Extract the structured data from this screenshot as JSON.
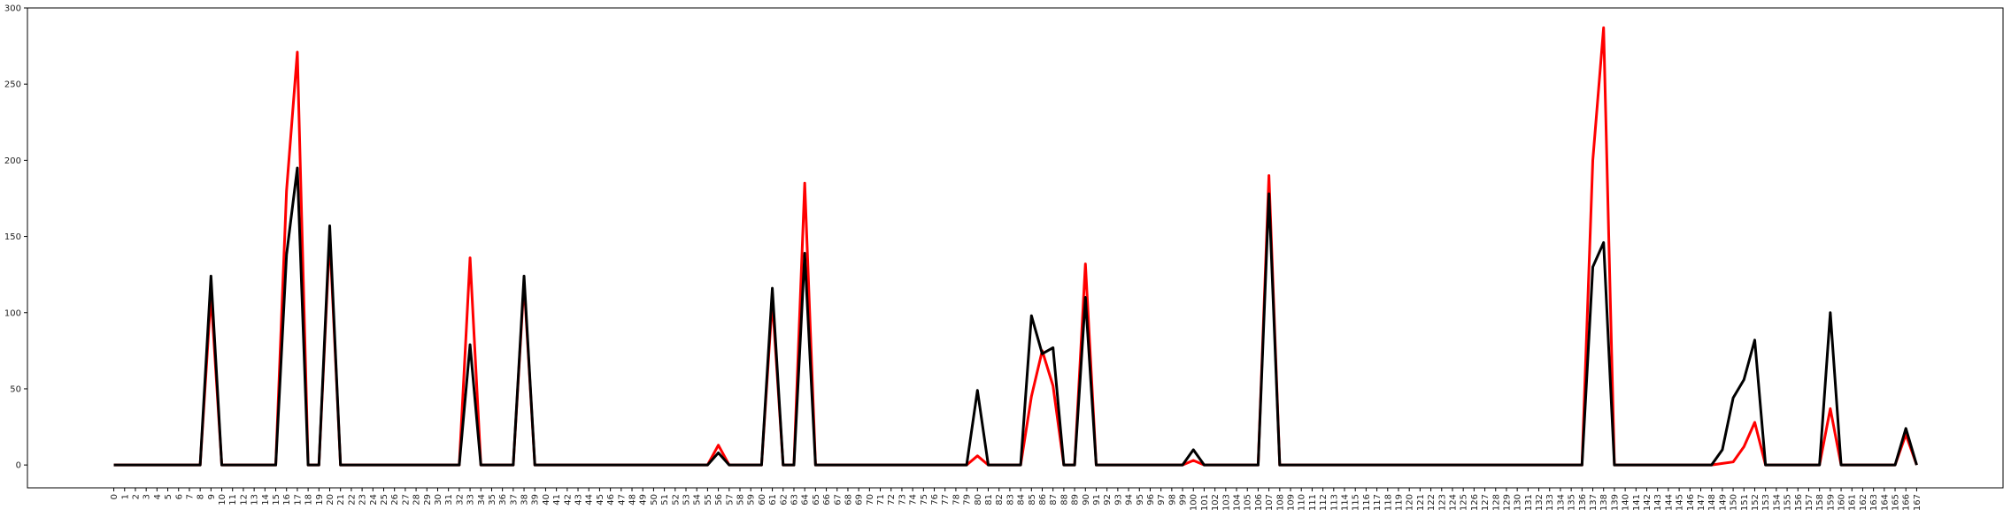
{
  "chart_data": {
    "type": "line",
    "title": "",
    "xlabel": "",
    "ylabel": "",
    "x": [
      0,
      1,
      2,
      3,
      4,
      5,
      6,
      7,
      8,
      9,
      10,
      11,
      12,
      13,
      14,
      15,
      16,
      17,
      18,
      19,
      20,
      21,
      22,
      23,
      24,
      25,
      26,
      27,
      28,
      29,
      30,
      31,
      32,
      33,
      34,
      35,
      36,
      37,
      38,
      39,
      40,
      41,
      42,
      43,
      44,
      45,
      46,
      47,
      48,
      49,
      50,
      51,
      52,
      53,
      54,
      55,
      56,
      57,
      58,
      59,
      60,
      61,
      62,
      63,
      64,
      65,
      66,
      67,
      68,
      69,
      70,
      71,
      72,
      73,
      74,
      75,
      76,
      77,
      78,
      79,
      80,
      81,
      82,
      83,
      84,
      85,
      86,
      87,
      88,
      89,
      90,
      91,
      92,
      93,
      94,
      95,
      96,
      97,
      98,
      99,
      100,
      101,
      102,
      103,
      104,
      105,
      106,
      107,
      108,
      109,
      110,
      111,
      112,
      113,
      114,
      115,
      116,
      117,
      118,
      119,
      120,
      121,
      122,
      123,
      124,
      125,
      126,
      127,
      128,
      129,
      130,
      131,
      132,
      133,
      134,
      135,
      136,
      137,
      138,
      139,
      140,
      141,
      142,
      143,
      144,
      145,
      146,
      147,
      148,
      149,
      150,
      151,
      152,
      153,
      154,
      155,
      156,
      157,
      158,
      159,
      160,
      161,
      162,
      163,
      164,
      165,
      166,
      167
    ],
    "ylim": [
      -15,
      300
    ],
    "xlim": [
      -8,
      175
    ],
    "yticks": [
      0,
      50,
      100,
      150,
      200,
      250,
      300
    ],
    "grid": false,
    "legend": "none",
    "series": [
      {
        "color": "#ff0000",
        "values": [
          0,
          0,
          0,
          0,
          0,
          0,
          0,
          0,
          0,
          112,
          0,
          0,
          0,
          0,
          0,
          0,
          180,
          271,
          0,
          0,
          150,
          0,
          0,
          0,
          0,
          0,
          0,
          0,
          0,
          0,
          0,
          0,
          0,
          136,
          0,
          0,
          0,
          0,
          120,
          0,
          0,
          0,
          0,
          0,
          0,
          0,
          0,
          0,
          0,
          0,
          0,
          0,
          0,
          0,
          0,
          0,
          13,
          0,
          0,
          0,
          0,
          108,
          0,
          0,
          185,
          0,
          0,
          0,
          0,
          0,
          0,
          0,
          0,
          0,
          0,
          0,
          0,
          0,
          0,
          0,
          6,
          0,
          0,
          0,
          0,
          45,
          75,
          52,
          0,
          0,
          132,
          0,
          0,
          0,
          0,
          0,
          0,
          0,
          0,
          0,
          3,
          0,
          0,
          0,
          0,
          0,
          0,
          190,
          0,
          0,
          0,
          0,
          0,
          0,
          0,
          0,
          0,
          0,
          0,
          0,
          0,
          0,
          0,
          0,
          0,
          0,
          0,
          0,
          0,
          0,
          0,
          0,
          0,
          0,
          0,
          0,
          0,
          200,
          287,
          0,
          0,
          0,
          0,
          0,
          0,
          0,
          0,
          0,
          0,
          1,
          2,
          12,
          28,
          0,
          0,
          0,
          0,
          0,
          0,
          37,
          0,
          0,
          0,
          0,
          0,
          0,
          20,
          0
        ]
      },
      {
        "color": "#000000",
        "values": [
          0,
          0,
          0,
          0,
          0,
          0,
          0,
          0,
          0,
          124,
          0,
          0,
          0,
          0,
          0,
          0,
          138,
          195,
          0,
          0,
          157,
          0,
          0,
          0,
          0,
          0,
          0,
          0,
          0,
          0,
          0,
          0,
          0,
          79,
          0,
          0,
          0,
          0,
          124,
          0,
          0,
          0,
          0,
          0,
          0,
          0,
          0,
          0,
          0,
          0,
          0,
          0,
          0,
          0,
          0,
          0,
          8,
          0,
          0,
          0,
          0,
          116,
          0,
          0,
          139,
          0,
          0,
          0,
          0,
          0,
          0,
          0,
          0,
          0,
          0,
          0,
          0,
          0,
          0,
          0,
          49,
          0,
          0,
          0,
          0,
          98,
          73,
          77,
          0,
          0,
          110,
          0,
          0,
          0,
          0,
          0,
          0,
          0,
          0,
          0,
          10,
          0,
          0,
          0,
          0,
          0,
          0,
          178,
          0,
          0,
          0,
          0,
          0,
          0,
          0,
          0,
          0,
          0,
          0,
          0,
          0,
          0,
          0,
          0,
          0,
          0,
          0,
          0,
          0,
          0,
          0,
          0,
          0,
          0,
          0,
          0,
          0,
          130,
          146,
          0,
          0,
          0,
          0,
          0,
          0,
          0,
          0,
          0,
          0,
          10,
          44,
          56,
          82,
          0,
          0,
          0,
          0,
          0,
          0,
          100,
          0,
          0,
          0,
          0,
          0,
          0,
          24,
          0
        ]
      }
    ]
  }
}
